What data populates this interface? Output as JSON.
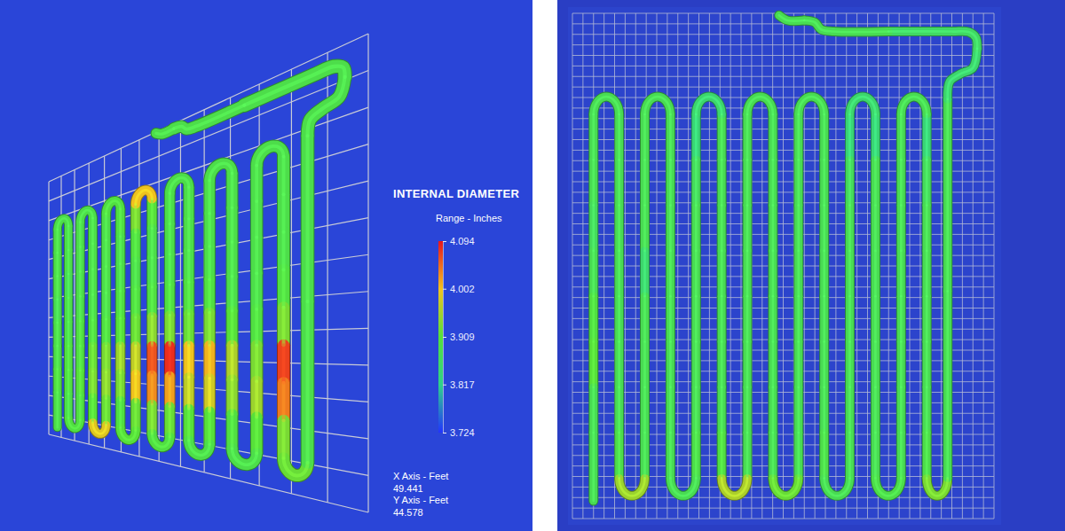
{
  "chart_data": [
    {
      "type": "pipe3d",
      "title": "INTERNAL DIAMETER",
      "colorbar": {
        "label": "Range - Inches",
        "range": [
          3.724,
          4.094
        ],
        "ticks": [
          4.094,
          4.002,
          3.909,
          3.817,
          3.724
        ],
        "colors": [
          "#2233ff",
          "#2fd18a",
          "#55e03a",
          "#f2c21f",
          "#e8141e"
        ]
      },
      "x_label": "X Axis - Feet",
      "xlim": [
        0,
        49.441
      ],
      "y_label": "Y Axis - Feet",
      "ylim": [
        0,
        44.578
      ],
      "grid": true,
      "legs": [
        [
          3.89,
          3.89,
          3.89,
          3.88,
          3.89,
          3.89,
          3.9,
          3.89
        ],
        [
          3.89,
          3.89,
          3.88,
          3.89,
          3.89,
          3.9,
          3.9,
          3.89
        ],
        [
          3.89,
          3.89,
          3.89,
          3.89,
          3.9,
          3.9,
          3.91,
          3.9
        ],
        [
          3.89,
          3.89,
          3.89,
          3.89,
          3.9,
          3.92,
          3.93,
          3.91
        ],
        [
          3.89,
          3.89,
          3.89,
          3.89,
          3.9,
          3.93,
          3.94,
          3.92
        ],
        [
          3.9,
          3.89,
          3.89,
          3.9,
          3.91,
          3.95,
          3.93,
          3.9
        ],
        [
          3.93,
          3.9,
          3.89,
          3.9,
          3.92,
          3.97,
          4.0,
          3.92
        ],
        [
          3.91,
          3.89,
          3.89,
          3.9,
          3.94,
          4.06,
          4.03,
          3.93
        ],
        [
          3.89,
          3.89,
          3.89,
          3.9,
          3.93,
          4.08,
          4.02,
          3.92
        ],
        [
          3.89,
          3.89,
          3.89,
          3.9,
          3.92,
          4.0,
          3.97,
          3.91
        ],
        [
          3.89,
          3.89,
          3.89,
          3.9,
          3.93,
          4.01,
          3.98,
          3.91
        ],
        [
          3.89,
          3.89,
          3.89,
          3.89,
          3.91,
          3.96,
          3.94,
          3.9
        ],
        [
          3.89,
          3.89,
          3.89,
          3.89,
          3.9,
          3.93,
          3.95,
          3.91
        ],
        [
          3.89,
          3.89,
          3.89,
          3.9,
          3.93,
          4.07,
          4.04,
          3.93
        ]
      ],
      "top_bends": [
        3.89,
        3.89,
        3.9,
        4.0,
        3.89,
        3.89,
        3.89
      ],
      "bottom_bends": [
        3.9,
        3.99,
        3.91,
        3.9,
        3.89,
        3.89,
        3.92
      ],
      "riser": [
        3.89,
        3.89,
        3.89,
        3.89,
        3.89,
        3.89
      ]
    },
    {
      "type": "pipe2d",
      "grid": true,
      "legs": [
        [
          3.88,
          3.88,
          3.87,
          3.88,
          3.9,
          3.91,
          3.88,
          3.88
        ],
        [
          3.88,
          3.88,
          3.88,
          3.88,
          3.88,
          3.88,
          3.88,
          3.89
        ],
        [
          3.88,
          3.88,
          3.88,
          3.85,
          3.88,
          3.88,
          3.88,
          3.88
        ],
        [
          3.88,
          3.88,
          3.88,
          3.88,
          3.88,
          3.88,
          3.88,
          3.88
        ],
        [
          3.84,
          3.87,
          3.88,
          3.88,
          3.88,
          3.88,
          3.88,
          3.89
        ],
        [
          3.88,
          3.88,
          3.88,
          3.88,
          3.88,
          3.88,
          3.88,
          3.9
        ],
        [
          3.88,
          3.88,
          3.88,
          3.88,
          3.88,
          3.88,
          3.88,
          3.88
        ],
        [
          3.88,
          3.88,
          3.88,
          3.88,
          3.88,
          3.88,
          3.88,
          3.88
        ],
        [
          3.88,
          3.88,
          3.88,
          3.88,
          3.88,
          3.88,
          3.88,
          3.88
        ],
        [
          3.88,
          3.88,
          3.88,
          3.88,
          3.88,
          3.88,
          3.88,
          3.89
        ],
        [
          3.84,
          3.87,
          3.88,
          3.88,
          3.88,
          3.88,
          3.88,
          3.88
        ],
        [
          3.84,
          3.88,
          3.88,
          3.88,
          3.88,
          3.88,
          3.88,
          3.88
        ],
        [
          3.88,
          3.88,
          3.88,
          3.88,
          3.88,
          3.88,
          3.88,
          3.88
        ],
        [
          3.84,
          3.87,
          3.88,
          3.88,
          3.88,
          3.88,
          3.88,
          3.89
        ]
      ],
      "top_bends": [
        3.88,
        3.88,
        3.85,
        3.88,
        3.88,
        3.85,
        3.88
      ],
      "bottom_bends": [
        3.95,
        3.88,
        3.96,
        3.92,
        3.88,
        3.89,
        3.93
      ],
      "riser": [
        3.88,
        3.88,
        3.85,
        3.86,
        3.88,
        3.88
      ]
    }
  ]
}
